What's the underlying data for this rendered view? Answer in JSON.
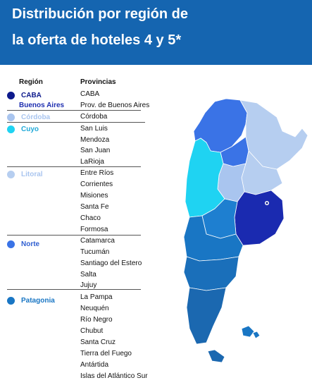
{
  "header": {
    "title_line1": "Distribución por región de",
    "title_line2": "la oferta de hoteles 4 y 5*",
    "background": "#1565b0"
  },
  "table": {
    "region_header": "Región",
    "provinces_header": "Provincias",
    "regions": [
      {
        "name": "CABA",
        "color": "#0d1a8c",
        "label_color": "#0d1a8c"
      },
      {
        "name": "Buenos Aires",
        "color": "#1e2fb0",
        "label_color": "#1e2fb0"
      },
      {
        "name": "Córdoba",
        "color": "#a9c5ef",
        "label_color": "#a9c5ef"
      },
      {
        "name": "Cuyo",
        "color": "#1fd3f2",
        "label_color": "#1fa9d8"
      },
      {
        "name": "Litoral",
        "color": "#b6cef0",
        "label_color": "#a9c5ef"
      },
      {
        "name": "Norte",
        "color": "#3a73e6",
        "label_color": "#2f5fd1"
      },
      {
        "name": "Patagonia",
        "color": "#1976c4",
        "label_color": "#1976c4"
      }
    ],
    "provinces": [
      "CABA",
      "Prov. de Buenos Aires",
      "Córdoba",
      "San Luis",
      "Mendoza",
      "San Juan",
      "LaRioja",
      "Entre Ríos",
      "Corrientes",
      "Misiones",
      "Santa Fe",
      "Chaco",
      "Formosa",
      "Catamarca",
      "Tucumán",
      "Santiago del Estero",
      "Salta",
      "Jujuy",
      "La Pampa",
      "Neuquén",
      "Río Negro",
      "Chubut",
      "Santa Cruz",
      "Tierra del Fuego",
      "Antártida",
      "Islas del Atlántico Sur"
    ]
  }
}
